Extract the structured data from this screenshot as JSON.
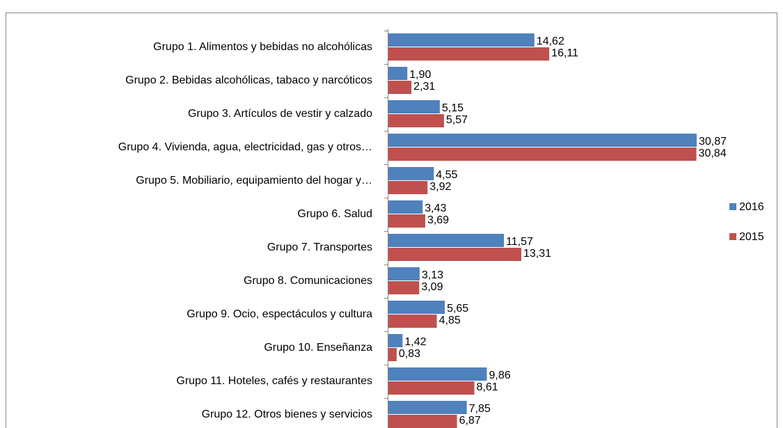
{
  "chart_data": {
    "type": "bar",
    "orientation": "horizontal",
    "categories": [
      "Grupo 1. Alimentos y bebidas no alcohólicas",
      "Grupo 2. Bebidas alcohólicas, tabaco y narcóticos",
      "Grupo 3. Artículos de vestir y calzado",
      "Grupo 4. Vivienda, agua, electricidad, gas y otros…",
      "Grupo 5. Mobiliario, equipamiento del hogar y…",
      "Grupo 6. Salud",
      "Grupo 7. Transportes",
      "Grupo 8. Comunicaciones",
      "Grupo 9. Ocio, espectáculos y cultura",
      "Grupo 10. Enseñanza",
      "Grupo 11. Hoteles, cafés y restaurantes",
      "Grupo 12. Otros bienes y servicios"
    ],
    "series": [
      {
        "name": "2016",
        "color": "#4f81bd",
        "values": [
          14.62,
          1.9,
          5.15,
          30.87,
          4.55,
          3.43,
          11.57,
          3.13,
          5.65,
          1.42,
          9.86,
          7.85
        ],
        "value_labels": [
          "14,62",
          "1,90",
          "5,15",
          "30,87",
          "4,55",
          "3,43",
          "11,57",
          "3,13",
          "5,65",
          "1,42",
          "9,86",
          "7,85"
        ]
      },
      {
        "name": "2015",
        "color": "#c0504d",
        "values": [
          16.11,
          2.31,
          5.57,
          30.84,
          3.92,
          3.69,
          13.31,
          3.09,
          4.85,
          0.83,
          8.61,
          6.87
        ],
        "value_labels": [
          "16,11",
          "2,31",
          "5,57",
          "30,84",
          "3,92",
          "3,69",
          "13,31",
          "3,09",
          "4,85",
          "0,83",
          "8,61",
          "6,87"
        ]
      }
    ],
    "legend": "right"
  }
}
